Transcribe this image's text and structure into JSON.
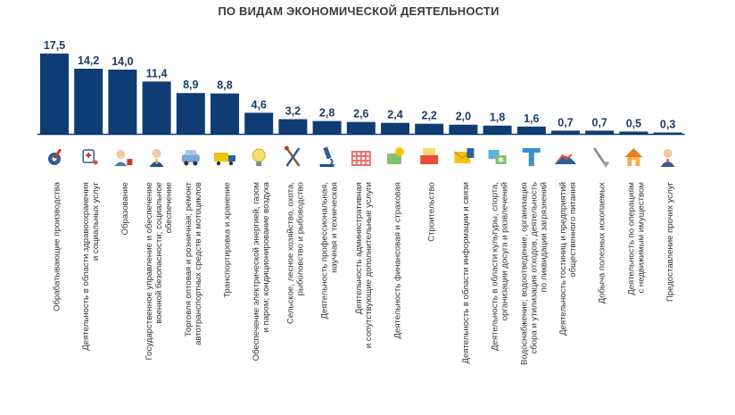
{
  "chart_data": {
    "type": "bar",
    "title": "ПО ВИДАМ ЭКОНОМИЧЕСКОЙ ДЕЯТЕЛЬНОСТИ",
    "xlabel": "",
    "ylabel": "",
    "ylim": [
      0,
      17.5
    ],
    "value_labels": [
      "17,5",
      "14,2",
      "14,0",
      "11,4",
      "8,9",
      "8,8",
      "4,6",
      "3,2",
      "2,8",
      "2,6",
      "2,4",
      "2,2",
      "2,0",
      "1,8",
      "1,6",
      "0,7",
      "0,7",
      "0,5",
      "0,3"
    ],
    "values": [
      17.5,
      14.2,
      14.0,
      11.4,
      8.9,
      8.8,
      4.6,
      3.2,
      2.8,
      2.6,
      2.4,
      2.2,
      2.0,
      1.8,
      1.6,
      0.7,
      0.7,
      0.5,
      0.3
    ],
    "categories": [
      [
        "Обрабатывающие производства"
      ],
      [
        "Деятельность в области здравоохранения",
        "и социальных услуг"
      ],
      [
        "Образование"
      ],
      [
        "Государственное управление и обеспечение",
        "военной безопасности; социальное",
        "обеспечение"
      ],
      [
        "Торговля оптовая и розничная; ремонт",
        "автотранспортных средств и мотоциклов"
      ],
      [
        "Транспортировка и хранение"
      ],
      [
        "Обеспечение электрической энергией, газом",
        "и паром; кондиционирование воздуха"
      ],
      [
        "Сельское, лесное хозяйство, охота,",
        "рыболовство и рыбоводство"
      ],
      [
        "Деятельность профессиональная,",
        "научная и техническая"
      ],
      [
        "Деятельность административная",
        "и сопутствующие дополнительные услуги"
      ],
      [
        "Деятельность финансовая и страховая"
      ],
      [
        "Строительство"
      ],
      [
        "Деятельность в области информации и связи"
      ],
      [
        "Деятельность в области культуры, спорта,",
        "организации досуга и развлечений"
      ],
      [
        "Водоснабжение; водоотведение, организация",
        "сбора и утилизация отходов, деятельность",
        "по ликвидации загрязнений"
      ],
      [
        "Деятельность гостиниц и предприятий",
        "общественного питания"
      ],
      [
        "Добыча полезных ископаемых"
      ],
      [
        "Деятельность по операциям",
        "с недвижимым имуществом"
      ],
      [
        "Предоставление прочих услуг"
      ]
    ],
    "icons": [
      "gear-hammer-icon",
      "medical-stethoscope-icon",
      "teacher-icon",
      "official-icon",
      "car-icon",
      "truck-icon",
      "lightbulb-icon",
      "tools-icon",
      "microscope-icon",
      "building-icon",
      "money-icon",
      "construction-icon",
      "mail-icon",
      "culture-icon",
      "water-pipe-icon",
      "hotel-icon",
      "mining-icon",
      "house-icon",
      "person-icon"
    ],
    "grid": false,
    "legend": "none",
    "colors": {
      "bar": "#0f3d73",
      "value_text": "#1a3a6b",
      "axis": "#0f3d73"
    }
  }
}
